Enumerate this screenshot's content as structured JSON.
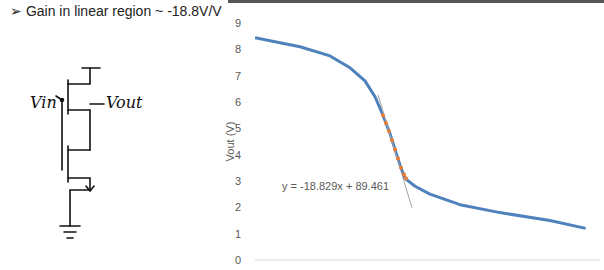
{
  "chart_data": {
    "type": "line",
    "title": "➢ Gain in linear region ~ -18.8V/V",
    "ylabel": "Vout (V)",
    "annotations": [
      "y = -18.829x + 89.461",
      "Vin",
      "Vout"
    ],
    "xlim": [
      3.6,
      6.0
    ],
    "ylim": [
      0,
      9
    ],
    "yticks": [
      0,
      1,
      2,
      3,
      4,
      5,
      6,
      7,
      8,
      9
    ],
    "tick_labels": "y",
    "grid": false,
    "series": [
      {
        "type": "line",
        "color": "#4f81bd",
        "line_style": "solid",
        "x": [
          3.6,
          3.913,
          4.122,
          4.261,
          4.365,
          4.435,
          4.49,
          4.539,
          4.574,
          4.609,
          4.643,
          4.713,
          4.817,
          5.026,
          5.304,
          5.652,
          5.9
        ],
        "values": [
          8.44,
          8.1,
          7.75,
          7.3,
          6.8,
          6.2,
          5.5,
          4.8,
          4.2,
          3.6,
          3.1,
          2.8,
          2.5,
          2.1,
          1.8,
          1.5,
          1.2
        ]
      },
      {
        "type": "scatter",
        "color": "#ed7d31",
        "marker": "circle",
        "x": [
          4.49,
          4.511,
          4.532,
          4.553,
          4.574,
          4.595,
          4.616,
          4.637,
          4.65
        ],
        "values": [
          5.5,
          5.2,
          4.9,
          4.55,
          4.2,
          3.85,
          3.5,
          3.25,
          3.1
        ]
      },
      {
        "type": "line",
        "color": "#a6a6a6",
        "line_style": "solid",
        "x": [
          4.456,
          4.692
        ],
        "values": [
          6.27,
          1.98
        ]
      }
    ]
  }
}
